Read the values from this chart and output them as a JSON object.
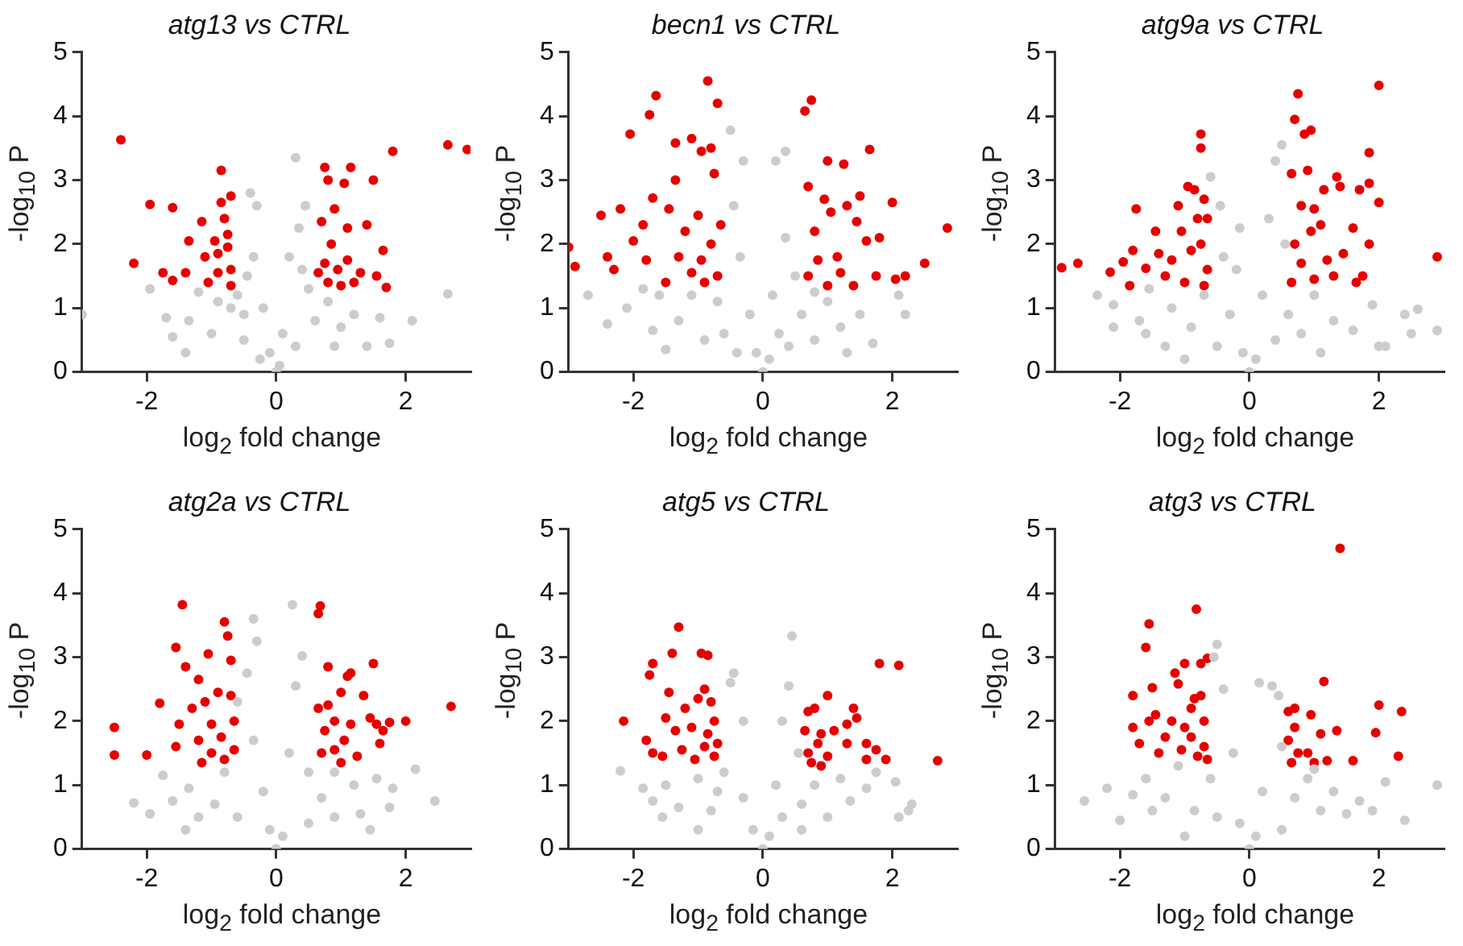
{
  "chart_data": [
    {
      "type": "scatter",
      "title": "atg13 vs CTRL",
      "xlabel": "log$_{2}$ fold change",
      "ylabel": "-log$_{10}$ P",
      "xlim": [
        -3,
        3
      ],
      "ylim": [
        0,
        5
      ],
      "xticks": [
        -2,
        0,
        2
      ],
      "yticks": [
        0,
        1,
        2,
        3,
        4,
        5
      ],
      "marker": "circle",
      "series": [
        {
          "color": "#cccccc",
          "x": [
            -3,
            -1.95,
            -1.7,
            -1.6,
            -1.35,
            -1.2,
            -1.0,
            -0.9,
            -0.6,
            -0.5,
            -0.4,
            -0.35,
            -0.3,
            -0.2,
            -0.1,
            0,
            0.05,
            0.1,
            0.2,
            0.3,
            0.35,
            0.45,
            0.5,
            0.6,
            0.8,
            1.0,
            1.2,
            1.4,
            1.6,
            1.75,
            2.1,
            2.65,
            -0.5,
            0.3,
            -0.25,
            0.9,
            -1.4,
            -0.7,
            0.4,
            -0.45
          ],
          "values": [
            0.9,
            1.3,
            0.85,
            0.55,
            0.8,
            1.25,
            0.6,
            1.1,
            1.2,
            0.5,
            2.8,
            1.8,
            2.6,
            1.0,
            0.3,
            0,
            0.1,
            0.6,
            1.8,
            3.35,
            2.25,
            2.6,
            1.3,
            0.8,
            1.1,
            0.7,
            0.9,
            0.4,
            0.85,
            0.45,
            0.8,
            1.22,
            0.9,
            0.4,
            0.2,
            0.4,
            0.3,
            1.0,
            1.6,
            1.5
          ]
        },
        {
          "color": "#e60000",
          "x": [
            -2.4,
            -1.95,
            -1.6,
            -2.2,
            -1.75,
            -1.6,
            -1.35,
            -1.4,
            -1.15,
            -1.1,
            -1.05,
            -0.95,
            -0.9,
            -0.85,
            -0.85,
            -0.8,
            -0.75,
            -0.7,
            -0.7,
            -0.7,
            -0.75,
            -0.9,
            0.65,
            0.7,
            0.75,
            0.8,
            0.8,
            0.85,
            0.9,
            0.95,
            1.05,
            1.1,
            1.1,
            1.15,
            1.2,
            1.3,
            1.4,
            1.5,
            1.55,
            1.65,
            1.7,
            1.8,
            2.65,
            2.95,
            1.0,
            0.75
          ],
          "values": [
            3.63,
            2.62,
            2.57,
            1.7,
            1.55,
            1.43,
            2.05,
            1.55,
            2.35,
            1.8,
            1.4,
            2.05,
            1.55,
            3.15,
            2.65,
            2.4,
            1.95,
            2.75,
            1.6,
            1.35,
            2.15,
            1.85,
            1.55,
            2.35,
            3.2,
            3.0,
            1.4,
            2.0,
            2.55,
            1.6,
            2.95,
            2.25,
            1.75,
            3.2,
            1.4,
            1.55,
            2.3,
            3.0,
            1.5,
            1.9,
            1.32,
            3.45,
            3.55,
            3.48,
            1.35,
            1.7
          ]
        }
      ]
    },
    {
      "type": "scatter",
      "title": "becn1 vs CTRL",
      "xlabel": "log$_{2}$ fold change",
      "ylabel": "-log$_{10}$ P",
      "xlim": [
        -3,
        3
      ],
      "ylim": [
        0,
        5
      ],
      "xticks": [
        -2,
        0,
        2
      ],
      "yticks": [
        0,
        1,
        2,
        3,
        4,
        5
      ],
      "marker": "circle",
      "series": [
        {
          "color": "#cccccc",
          "x": [
            -2.7,
            -2.4,
            -2.1,
            -1.85,
            -1.7,
            -1.5,
            -1.3,
            -1.1,
            -0.9,
            -0.7,
            -0.5,
            -0.45,
            -0.3,
            -0.35,
            -0.2,
            -0.1,
            0,
            0.1,
            0.15,
            0.2,
            0.35,
            0.35,
            0.5,
            0.6,
            0.8,
            1.0,
            1.2,
            1.5,
            1.7,
            2.1,
            2.2,
            -0.6,
            0.4,
            -1.6,
            1.3,
            0.8,
            -0.4,
            0.25
          ],
          "values": [
            1.2,
            0.75,
            1.0,
            1.3,
            0.65,
            0.35,
            0.8,
            1.2,
            0.5,
            1.1,
            3.78,
            2.6,
            3.3,
            1.8,
            0.9,
            0.3,
            0,
            0.2,
            1.2,
            3.3,
            3.45,
            2.1,
            1.5,
            0.9,
            0.5,
            1.1,
            0.7,
            0.9,
            0.45,
            1.2,
            0.9,
            0.6,
            0.4,
            1.2,
            0.3,
            1.25,
            0.3,
            0.6
          ]
        },
        {
          "color": "#e60000",
          "x": [
            -3,
            -2.9,
            -2.5,
            -2.4,
            -2.3,
            -2.2,
            -2.05,
            -2.0,
            -1.85,
            -1.8,
            -1.75,
            -1.65,
            -1.7,
            -1.5,
            -1.45,
            -1.35,
            -1.35,
            -1.3,
            -1.2,
            -1.1,
            -1.1,
            -1.0,
            -0.95,
            -0.95,
            -0.9,
            -0.85,
            -0.8,
            -0.8,
            -0.75,
            -0.7,
            -0.7,
            -0.65,
            0.65,
            0.7,
            0.75,
            0.7,
            0.8,
            0.85,
            0.95,
            1.0,
            1.0,
            1.05,
            1.15,
            1.25,
            1.3,
            1.4,
            1.45,
            1.5,
            1.6,
            1.65,
            1.75,
            1.8,
            2.0,
            2.05,
            2.2,
            2.5,
            2.85,
            1.2
          ],
          "values": [
            1.95,
            1.65,
            2.45,
            1.8,
            1.6,
            2.55,
            3.72,
            2.05,
            2.3,
            1.75,
            4.02,
            4.32,
            2.72,
            1.4,
            2.55,
            3.0,
            3.58,
            1.8,
            2.2,
            3.65,
            1.55,
            2.45,
            3.45,
            1.75,
            1.4,
            4.55,
            3.5,
            2.0,
            3.1,
            4.2,
            1.5,
            2.3,
            4.08,
            2.9,
            4.25,
            1.5,
            2.2,
            1.75,
            2.7,
            3.3,
            1.35,
            2.5,
            1.8,
            3.25,
            2.6,
            1.35,
            2.35,
            2.75,
            2.05,
            3.48,
            1.5,
            2.1,
            2.65,
            1.45,
            1.5,
            1.7,
            2.25,
            1.55
          ]
        }
      ]
    },
    {
      "type": "scatter",
      "title": "atg9a vs CTRL",
      "xlabel": "log$_{2}$ fold change",
      "ylabel": "-log$_{10}$ P",
      "xlim": [
        -3,
        3
      ],
      "ylim": [
        0,
        5
      ],
      "xticks": [
        -2,
        0,
        2
      ],
      "yticks": [
        0,
        1,
        2,
        3,
        4,
        5
      ],
      "marker": "circle",
      "series": [
        {
          "color": "#cccccc",
          "x": [
            -2.35,
            -2.1,
            -2.1,
            -1.7,
            -1.6,
            -1.55,
            -1.3,
            -1.2,
            -0.9,
            -0.7,
            -0.6,
            -0.45,
            -0.4,
            -0.3,
            -0.15,
            -0.1,
            0,
            0.1,
            0.2,
            0.3,
            0.4,
            0.5,
            0.55,
            0.6,
            0.8,
            1.0,
            1.3,
            1.6,
            1.9,
            2.0,
            2.1,
            2.4,
            2.6,
            2.9,
            2.5,
            -0.5,
            0.4,
            -1.0,
            1.1,
            -0.2
          ],
          "values": [
            1.2,
            1.05,
            0.7,
            0.8,
            0.6,
            1.3,
            0.4,
            1.0,
            0.7,
            1.2,
            3.05,
            2.6,
            1.8,
            0.9,
            2.25,
            0.3,
            0,
            0.2,
            1.2,
            2.4,
            3.3,
            3.55,
            2.0,
            0.9,
            0.6,
            1.2,
            0.8,
            0.65,
            1.05,
            0.4,
            0.4,
            0.9,
            0.98,
            0.65,
            0.6,
            0.4,
            0.5,
            0.2,
            0.3,
            1.6
          ]
        },
        {
          "color": "#e60000",
          "x": [
            -2.9,
            -2.65,
            -2.15,
            -1.95,
            -1.85,
            -1.8,
            -1.75,
            -1.6,
            -1.45,
            -1.4,
            -1.3,
            -1.2,
            -1.1,
            -1.05,
            -1.0,
            -0.95,
            -0.9,
            -0.85,
            -0.8,
            -0.75,
            -0.75,
            -0.7,
            -0.65,
            -0.65,
            -0.7,
            -0.75,
            0.65,
            0.65,
            0.7,
            0.7,
            0.75,
            0.8,
            0.8,
            0.85,
            0.9,
            0.95,
            0.95,
            1.0,
            1.0,
            1.1,
            1.15,
            1.3,
            1.35,
            1.4,
            1.45,
            1.6,
            1.65,
            1.7,
            1.75,
            1.85,
            1.85,
            1.85,
            2.0,
            2.0,
            2.9,
            1.2
          ],
          "values": [
            1.63,
            1.7,
            1.56,
            1.72,
            1.35,
            1.9,
            2.55,
            1.62,
            2.2,
            1.85,
            1.5,
            1.75,
            2.6,
            2.2,
            1.4,
            2.9,
            1.9,
            2.85,
            2.4,
            3.72,
            3.5,
            2.7,
            1.6,
            2.4,
            1.35,
            2.0,
            3.1,
            1.4,
            2.0,
            3.95,
            4.35,
            2.6,
            1.7,
            3.72,
            3.15,
            3.78,
            2.2,
            2.55,
            1.45,
            2.3,
            2.85,
            1.5,
            3.05,
            2.9,
            1.85,
            2.25,
            1.4,
            2.85,
            1.5,
            2.0,
            2.95,
            3.43,
            4.48,
            2.65,
            1.8,
            1.75
          ]
        }
      ]
    },
    {
      "type": "scatter",
      "title": "atg2a vs CTRL",
      "xlabel": "log$_{2}$ fold change",
      "ylabel": "-log$_{10}$ P",
      "xlim": [
        -3,
        3
      ],
      "ylim": [
        0,
        5
      ],
      "xticks": [
        -2,
        0,
        2
      ],
      "yticks": [
        0,
        1,
        2,
        3,
        4,
        5
      ],
      "marker": "circle",
      "series": [
        {
          "color": "#cccccc",
          "x": [
            -2.2,
            -1.95,
            -1.75,
            -1.6,
            -1.35,
            -1.2,
            -0.95,
            -0.8,
            -0.6,
            -0.45,
            -0.35,
            -0.3,
            -0.35,
            -0.2,
            -0.1,
            0,
            0.1,
            0.2,
            0.25,
            0.4,
            0.3,
            0.5,
            0.7,
            0.9,
            1.2,
            1.3,
            1.45,
            1.55,
            1.8,
            1.75,
            2.15,
            2.45,
            -0.6,
            0.5,
            -1.4,
            0.9
          ],
          "values": [
            0.72,
            0.55,
            1.15,
            0.75,
            0.95,
            0.5,
            0.7,
            1.2,
            2.3,
            2.75,
            3.6,
            3.25,
            1.7,
            0.9,
            0.3,
            0,
            0.2,
            1.5,
            3.82,
            3.02,
            2.55,
            1.2,
            0.8,
            0.5,
            1.0,
            0.55,
            0.3,
            1.1,
            0.95,
            0.65,
            1.25,
            0.75,
            0.5,
            0.4,
            0.3,
            1.2
          ]
        },
        {
          "color": "#e60000",
          "x": [
            -2.5,
            -2.5,
            -2.0,
            -1.8,
            -1.55,
            -1.55,
            -1.45,
            -1.5,
            -1.4,
            -1.3,
            -1.2,
            -1.2,
            -1.15,
            -1.1,
            -1.05,
            -1.0,
            -1.0,
            -0.9,
            -0.85,
            -0.8,
            -0.75,
            -0.8,
            -0.7,
            -0.7,
            -0.65,
            -0.65,
            0.65,
            0.68,
            0.65,
            0.7,
            0.75,
            0.8,
            0.8,
            0.9,
            0.9,
            1.0,
            1.05,
            1.1,
            1.15,
            1.15,
            1.25,
            1.35,
            1.45,
            1.5,
            1.55,
            1.6,
            1.65,
            1.75,
            2.0,
            2.7,
            1.0
          ],
          "values": [
            1.9,
            1.47,
            1.47,
            2.28,
            3.15,
            1.6,
            3.82,
            1.95,
            2.85,
            2.2,
            2.65,
            1.7,
            1.35,
            2.3,
            3.05,
            1.95,
            1.5,
            2.45,
            1.75,
            3.55,
            3.33,
            1.4,
            2.95,
            2.4,
            2.0,
            1.55,
            3.68,
            3.8,
            2.2,
            1.5,
            1.85,
            2.85,
            2.25,
            2.0,
            1.55,
            2.45,
            1.7,
            2.7,
            2.75,
            1.95,
            1.45,
            2.4,
            2.05,
            2.9,
            1.95,
            1.65,
            1.85,
            1.98,
            2.0,
            2.23,
            1.35
          ]
        }
      ]
    },
    {
      "type": "scatter",
      "title": "atg5 vs CTRL",
      "xlabel": "log$_{2}$ fold change",
      "ylabel": "-log$_{10}$ P",
      "xlim": [
        -3,
        3
      ],
      "ylim": [
        0,
        5
      ],
      "xticks": [
        -2,
        0,
        2
      ],
      "yticks": [
        0,
        1,
        2,
        3,
        4,
        5
      ],
      "marker": "circle",
      "series": [
        {
          "color": "#cccccc",
          "x": [
            -2.2,
            -1.85,
            -1.7,
            -1.55,
            -1.5,
            -1.3,
            -1.0,
            -0.8,
            -0.6,
            -0.5,
            -0.45,
            -0.3,
            -0.3,
            -0.15,
            0,
            0.1,
            0.2,
            0.3,
            0.4,
            0.45,
            0.55,
            0.6,
            0.8,
            1.0,
            1.2,
            1.35,
            1.6,
            1.75,
            2.05,
            2.1,
            2.3,
            2.25,
            -1.0,
            0.6,
            -0.7,
            0.3
          ],
          "values": [
            1.22,
            0.95,
            0.75,
            0.5,
            1.0,
            0.65,
            1.1,
            0.6,
            1.2,
            2.6,
            2.75,
            2.0,
            0.8,
            0.3,
            0,
            0.2,
            1.0,
            2.0,
            2.55,
            3.33,
            1.5,
            0.7,
            1.0,
            0.5,
            1.1,
            0.75,
            0.95,
            1.2,
            1.05,
            0.5,
            0.7,
            0.6,
            0.3,
            0.3,
            0.9,
            0.5
          ]
        },
        {
          "color": "#e60000",
          "x": [
            -2.15,
            -1.8,
            -1.75,
            -1.7,
            -1.7,
            -1.55,
            -1.5,
            -1.45,
            -1.4,
            -1.35,
            -1.3,
            -1.25,
            -1.2,
            -1.1,
            -1.05,
            -1.0,
            -0.95,
            -0.9,
            -0.9,
            -0.85,
            -0.85,
            -0.8,
            -0.75,
            -0.75,
            -0.7,
            0.65,
            0.7,
            0.7,
            0.75,
            0.8,
            0.85,
            0.9,
            1.0,
            1.0,
            1.1,
            1.3,
            1.3,
            1.4,
            1.45,
            1.6,
            1.6,
            1.75,
            1.8,
            1.9,
            2.1,
            2.7,
            0.9
          ],
          "values": [
            2.0,
            1.7,
            2.72,
            2.9,
            1.5,
            1.45,
            2.05,
            2.45,
            3.06,
            1.85,
            3.47,
            1.55,
            2.2,
            1.9,
            1.4,
            2.35,
            3.06,
            2.5,
            1.6,
            3.03,
            1.8,
            2.3,
            1.45,
            2.0,
            1.65,
            1.85,
            2.15,
            1.5,
            1.35,
            2.2,
            1.65,
            1.8,
            2.4,
            1.45,
            1.85,
            1.65,
            1.95,
            2.2,
            2.05,
            1.65,
            1.4,
            1.55,
            2.9,
            1.4,
            2.87,
            1.38,
            1.3
          ]
        }
      ]
    },
    {
      "type": "scatter",
      "title": "atg3 vs CTRL",
      "xlabel": "log$_{2}$ fold change",
      "ylabel": "-log$_{10}$ P",
      "xlim": [
        -3,
        3
      ],
      "ylim": [
        0,
        5
      ],
      "xticks": [
        -2,
        0,
        2
      ],
      "yticks": [
        0,
        1,
        2,
        3,
        4,
        5
      ],
      "marker": "circle",
      "series": [
        {
          "color": "#cccccc",
          "x": [
            -2.55,
            -2.2,
            -2.0,
            -1.8,
            -1.6,
            -1.5,
            -1.3,
            -1.1,
            -0.85,
            -0.6,
            -0.55,
            -0.5,
            -0.4,
            -0.25,
            -0.15,
            0,
            0.1,
            0.2,
            0.15,
            0.35,
            0.45,
            0.5,
            0.7,
            0.9,
            1.1,
            1.3,
            1.5,
            1.7,
            1.9,
            2.1,
            2.4,
            2.9,
            -0.5,
            0.5,
            -1.0,
            1.0
          ],
          "values": [
            0.75,
            0.95,
            0.45,
            0.85,
            1.1,
            0.6,
            0.8,
            1.3,
            0.6,
            1.1,
            3.0,
            3.2,
            2.5,
            1.5,
            0.4,
            0,
            0.2,
            0.9,
            2.6,
            2.55,
            2.4,
            1.6,
            0.8,
            1.1,
            0.6,
            0.9,
            0.55,
            0.75,
            0.6,
            1.05,
            0.45,
            1.0,
            0.5,
            0.3,
            0.2,
            1.25
          ]
        },
        {
          "color": "#e60000",
          "x": [
            -1.8,
            -1.8,
            -1.7,
            -1.6,
            -1.55,
            -1.55,
            -1.5,
            -1.45,
            -1.4,
            -1.3,
            -1.2,
            -1.15,
            -1.1,
            -1.05,
            -1.0,
            -1.0,
            -0.9,
            -0.9,
            -0.85,
            -0.82,
            -0.8,
            -0.75,
            -0.75,
            -0.7,
            -0.7,
            -0.65,
            -0.65,
            0.6,
            0.6,
            0.65,
            0.7,
            0.75,
            0.9,
            0.95,
            1.0,
            1.1,
            1.15,
            1.2,
            1.4,
            1.35,
            1.6,
            1.95,
            2.0,
            2.3,
            2.35,
            0.7
          ],
          "values": [
            2.4,
            1.9,
            1.65,
            3.15,
            3.52,
            2.0,
            2.52,
            2.1,
            1.5,
            1.75,
            2.0,
            2.75,
            2.58,
            1.55,
            2.9,
            1.9,
            2.2,
            1.75,
            2.35,
            3.75,
            1.45,
            2.9,
            2.4,
            2.0,
            1.6,
            2.98,
            1.4,
            2.15,
            1.7,
            1.35,
            1.9,
            1.5,
            1.5,
            2.1,
            1.35,
            1.8,
            2.62,
            1.38,
            4.7,
            1.85,
            1.38,
            1.82,
            2.25,
            1.45,
            2.15,
            2.2
          ]
        }
      ]
    }
  ]
}
